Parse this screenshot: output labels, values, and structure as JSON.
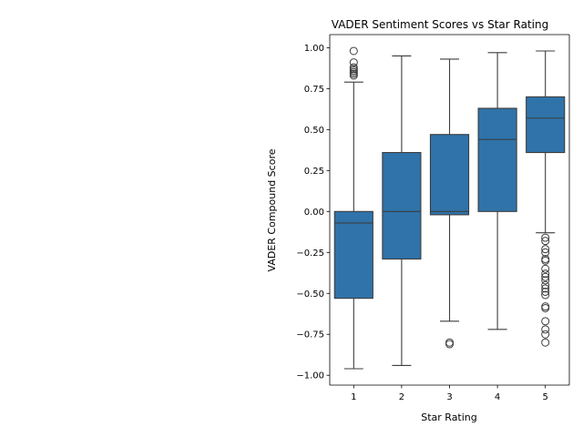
{
  "chart_data": {
    "type": "box",
    "title": "VADER Sentiment Scores vs Star Rating",
    "xlabel": "Star Rating",
    "ylabel": "VADER Compound Score",
    "categories": [
      "1",
      "2",
      "3",
      "4",
      "5"
    ],
    "ylim": [
      -1.06,
      1.08
    ],
    "yticks": [
      -1.0,
      -0.75,
      -0.5,
      -0.25,
      0.0,
      0.25,
      0.5,
      0.75,
      1.0
    ],
    "ytick_labels": [
      "−1.00",
      "−0.75",
      "−0.50",
      "−0.25",
      "0.00",
      "0.25",
      "0.50",
      "0.75",
      "1.00"
    ],
    "box_color": "#2f73aa",
    "line_color": "#3d3d3d",
    "boxes": [
      {
        "category": "1",
        "whisker_low": -0.96,
        "q1": -0.53,
        "median": -0.07,
        "q3": 0.0,
        "whisker_high": 0.79,
        "outliers": [
          0.98,
          0.91,
          0.88,
          0.87,
          0.86,
          0.85,
          0.84,
          0.83
        ]
      },
      {
        "category": "2",
        "whisker_low": -0.94,
        "q1": -0.29,
        "median": 0.0,
        "q3": 0.36,
        "whisker_high": 0.95,
        "outliers": []
      },
      {
        "category": "3",
        "whisker_low": -0.67,
        "q1": -0.02,
        "median": 0.0,
        "q3": 0.47,
        "whisker_high": 0.93,
        "outliers": [
          -0.8,
          -0.81
        ]
      },
      {
        "category": "4",
        "whisker_low": -0.72,
        "q1": 0.0,
        "median": 0.44,
        "q3": 0.63,
        "whisker_high": 0.97,
        "outliers": []
      },
      {
        "category": "5",
        "whisker_low": -0.13,
        "q1": 0.36,
        "median": 0.57,
        "q3": 0.7,
        "whisker_high": 0.98,
        "outliers": [
          -0.16,
          -0.18,
          -0.23,
          -0.25,
          -0.29,
          -0.3,
          -0.35,
          -0.38,
          -0.4,
          -0.42,
          -0.45,
          -0.47,
          -0.49,
          -0.51,
          -0.58,
          -0.59,
          -0.67,
          -0.72,
          -0.75,
          -0.8
        ]
      }
    ]
  }
}
